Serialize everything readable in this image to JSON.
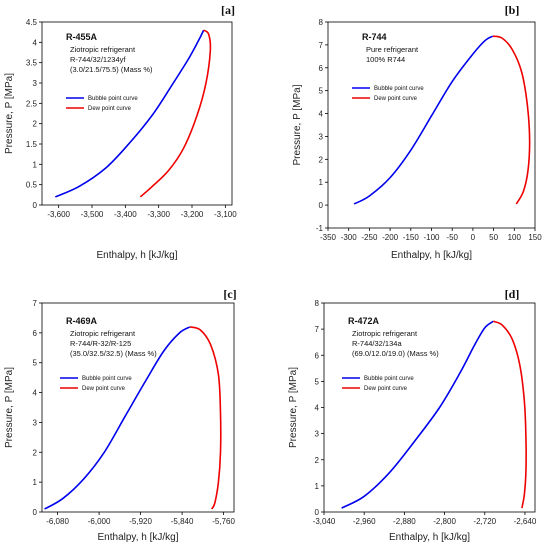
{
  "chart_data": [
    {
      "type": "line",
      "panel_label": "[a]",
      "refrigerant": "R-455A",
      "description": [
        "Ziotropic refrigerant",
        "R-744/32/1234yf",
        "(3.0/21.5/75.5) (Mass %)"
      ],
      "xlabel": "Enthalpy, h [kJ/kg]",
      "ylabel": "Pressure, P [MPa]",
      "xlim": [
        -3650,
        -3080
      ],
      "ylim": [
        0,
        4.5
      ],
      "xticks": [
        -3600,
        -3500,
        -3400,
        -3300,
        -3200,
        -3100
      ],
      "xtick_labels": [
        "-3,600",
        "-3,500",
        "-3,400",
        "-3,300",
        "-3,200",
        "-3,100"
      ],
      "yticks": [
        0,
        0.5,
        1,
        1.5,
        2,
        2.5,
        3,
        3.5,
        4,
        4.5
      ],
      "ytick_labels": [
        "0",
        "0.5",
        "1",
        "1.5",
        "2",
        "2.5",
        "3",
        "3.5",
        "4",
        "4.5"
      ],
      "series": [
        {
          "name": "Bubble point curve",
          "color": "#0000ee",
          "points": [
            [
              -3610,
              0.2
            ],
            [
              -3540,
              0.45
            ],
            [
              -3460,
              0.9
            ],
            [
              -3390,
              1.5
            ],
            [
              -3320,
              2.2
            ],
            [
              -3260,
              2.95
            ],
            [
              -3210,
              3.6
            ],
            [
              -3180,
              4.05
            ],
            [
              -3165,
              4.3
            ]
          ]
        },
        {
          "name": "Dew point curve",
          "color": "#ee0000",
          "points": [
            [
              -3165,
              4.3
            ],
            [
              -3150,
              4.2
            ],
            [
              -3145,
              3.8
            ],
            [
              -3158,
              3.0
            ],
            [
              -3185,
              2.2
            ],
            [
              -3225,
              1.4
            ],
            [
              -3270,
              0.85
            ],
            [
              -3320,
              0.45
            ],
            [
              -3355,
              0.2
            ]
          ]
        }
      ]
    },
    {
      "type": "line",
      "panel_label": "[b]",
      "refrigerant": "R-744",
      "description": [
        "Pure refrigerant",
        "100% R744"
      ],
      "xlabel": "Enthalpy, h [kJ/kg]",
      "ylabel": "Pressure, P [MPa]",
      "xlim": [
        -350,
        150
      ],
      "ylim": [
        -1,
        8
      ],
      "xticks": [
        -350,
        -300,
        -250,
        -200,
        -150,
        -100,
        -50,
        0,
        50,
        100,
        150
      ],
      "xtick_labels": [
        "-350",
        "-300",
        "-250",
        "-200",
        "-150",
        "-100",
        "-50",
        "0",
        "50",
        "100",
        "150"
      ],
      "yticks": [
        -1,
        0,
        1,
        2,
        3,
        4,
        5,
        6,
        7,
        8
      ],
      "ytick_labels": [
        "-1",
        "0",
        "1",
        "2",
        "3",
        "4",
        "5",
        "6",
        "7",
        "8"
      ],
      "series": [
        {
          "name": "Bubble point curve",
          "color": "#0000ee",
          "points": [
            [
              -287,
              0.05
            ],
            [
              -250,
              0.4
            ],
            [
              -200,
              1.2
            ],
            [
              -150,
              2.4
            ],
            [
              -100,
              3.9
            ],
            [
              -50,
              5.4
            ],
            [
              0,
              6.6
            ],
            [
              30,
              7.2
            ],
            [
              48,
              7.38
            ]
          ]
        },
        {
          "name": "Dew point curve",
          "color": "#ee0000",
          "points": [
            [
              48,
              7.38
            ],
            [
              70,
              7.3
            ],
            [
              95,
              6.8
            ],
            [
              118,
              5.8
            ],
            [
              132,
              4.3
            ],
            [
              137,
              2.8
            ],
            [
              133,
              1.5
            ],
            [
              122,
              0.6
            ],
            [
              105,
              0.05
            ]
          ]
        }
      ]
    },
    {
      "type": "line",
      "panel_label": "[c]",
      "refrigerant": "R-469A",
      "description": [
        "Ziotropic refrigerant",
        "R-744/R-32/R-125",
        "(35.0/32.5/32.5) (Mass %)"
      ],
      "xlabel": "Enthalpy, h [kJ/kg]",
      "ylabel": "Pressure, P [MPa]",
      "xlim": [
        -6110,
        -5740
      ],
      "ylim": [
        0,
        7
      ],
      "xticks": [
        -6080,
        -6000,
        -5920,
        -5840,
        -5760
      ],
      "xtick_labels": [
        "-6,080",
        "-6,000",
        "-5,920",
        "-5,840",
        "-5,760"
      ],
      "yticks": [
        0,
        1,
        2,
        3,
        4,
        5,
        6,
        7
      ],
      "ytick_labels": [
        "0",
        "1",
        "2",
        "3",
        "4",
        "5",
        "6",
        "7"
      ],
      "series": [
        {
          "name": "Bubble point curve",
          "color": "#0000ee",
          "points": [
            [
              -6105,
              0.1
            ],
            [
              -6070,
              0.45
            ],
            [
              -6030,
              1.1
            ],
            [
              -5990,
              2.0
            ],
            [
              -5950,
              3.2
            ],
            [
              -5910,
              4.4
            ],
            [
              -5875,
              5.4
            ],
            [
              -5845,
              6.0
            ],
            [
              -5825,
              6.2
            ]
          ]
        },
        {
          "name": "Dew point curve",
          "color": "#ee0000",
          "points": [
            [
              -5825,
              6.2
            ],
            [
              -5805,
              6.1
            ],
            [
              -5785,
              5.6
            ],
            [
              -5770,
              4.6
            ],
            [
              -5766,
              3.3
            ],
            [
              -5766,
              2.0
            ],
            [
              -5770,
              1.0
            ],
            [
              -5777,
              0.3
            ],
            [
              -5783,
              0.1
            ]
          ]
        }
      ]
    },
    {
      "type": "line",
      "panel_label": "[d]",
      "refrigerant": "R-472A",
      "description": [
        "Ziotropic refrigerant",
        "R-744/32/134a",
        "(69.0/12.0/19.0) (Mass %)"
      ],
      "xlabel": "Enthalpy, h [kJ/kg]",
      "ylabel": "Pressure, P [MPa]",
      "xlim": [
        -3040,
        -2620
      ],
      "ylim": [
        0,
        8
      ],
      "xticks": [
        -3040,
        -2960,
        -2880,
        -2800,
        -2720,
        -2640
      ],
      "xtick_labels": [
        "-3,040",
        "-2,960",
        "-2,880",
        "-2,800",
        "-2,720",
        "-2,640"
      ],
      "yticks": [
        0,
        1,
        2,
        3,
        4,
        5,
        6,
        7,
        8
      ],
      "ytick_labels": [
        "0",
        "1",
        "2",
        "3",
        "4",
        "5",
        "6",
        "7",
        "8"
      ],
      "series": [
        {
          "name": "Bubble point curve",
          "color": "#0000ee",
          "points": [
            [
              -3005,
              0.15
            ],
            [
              -2960,
              0.6
            ],
            [
              -2910,
              1.5
            ],
            [
              -2860,
              2.7
            ],
            [
              -2810,
              4.0
            ],
            [
              -2770,
              5.3
            ],
            [
              -2740,
              6.4
            ],
            [
              -2720,
              7.05
            ],
            [
              -2703,
              7.3
            ]
          ]
        },
        {
          "name": "Dew point curve",
          "color": "#ee0000",
          "points": [
            [
              -2703,
              7.3
            ],
            [
              -2685,
              7.15
            ],
            [
              -2665,
              6.6
            ],
            [
              -2650,
              5.6
            ],
            [
              -2641,
              4.2
            ],
            [
              -2638,
              2.8
            ],
            [
              -2638,
              1.6
            ],
            [
              -2641,
              0.7
            ],
            [
              -2646,
              0.15
            ]
          ]
        }
      ]
    }
  ]
}
